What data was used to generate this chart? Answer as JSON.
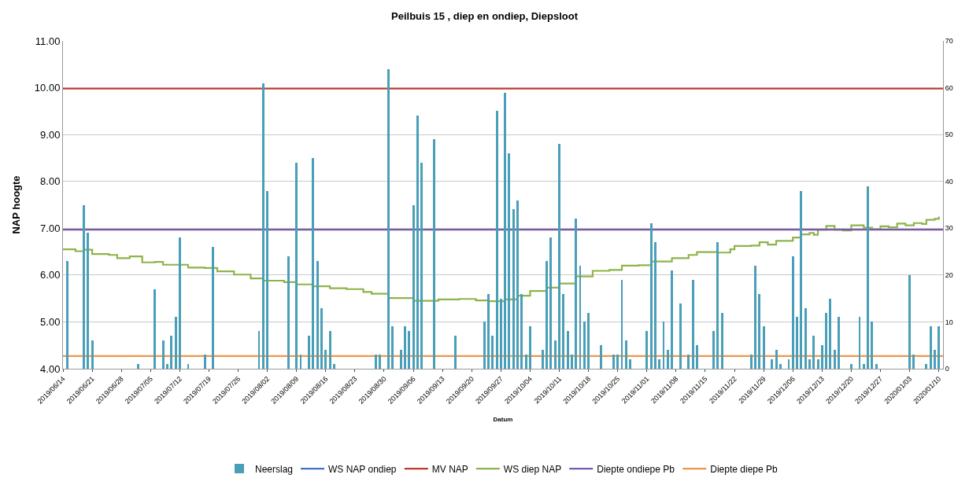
{
  "chart_data": {
    "type": "bar",
    "title": "Peilbuis 15 , diep en ondiep, Diepsloot",
    "xlabel": "Datum",
    "ylabel": "NAP hoogte",
    "xlim": [
      "2019-06-14",
      "2020-01-11"
    ],
    "xticks": [
      {
        "value": "2019-06-14",
        "label": "2019/06/14"
      },
      {
        "value": "2019-06-21",
        "label": "2019/06/21"
      },
      {
        "value": "2019-06-28",
        "label": "2019/06/28"
      },
      {
        "value": "2019-07-05",
        "label": "2019/07/05"
      },
      {
        "value": "2019-07-12",
        "label": "2019/07/12"
      },
      {
        "value": "2019-07-19",
        "label": "2019/07/19"
      },
      {
        "value": "2019-07-26",
        "label": "2019/07/26"
      },
      {
        "value": "2019-08-02",
        "label": "2019/08/02"
      },
      {
        "value": "2019-08-09",
        "label": "2019/08/09"
      },
      {
        "value": "2019-08-16",
        "label": "2019/08/16"
      },
      {
        "value": "2019-08-23",
        "label": "2019/08/23"
      },
      {
        "value": "2019-08-30",
        "label": "2019/08/30"
      },
      {
        "value": "2019-09-06",
        "label": "2019/09/06"
      },
      {
        "value": "2019-09-13",
        "label": "2019/09/13"
      },
      {
        "value": "2019-09-20",
        "label": "2019/09/20"
      },
      {
        "value": "2019-09-27",
        "label": "2019/09/27"
      },
      {
        "value": "2019-10-04",
        "label": "2019/10/04"
      },
      {
        "value": "2019-10-11",
        "label": "2019/10/11"
      },
      {
        "value": "2019-10-18",
        "label": "2019/10/18"
      },
      {
        "value": "2019-10-25",
        "label": "2019/10/25"
      },
      {
        "value": "2019-11-01",
        "label": "2019/11/01"
      },
      {
        "value": "2019-11-08",
        "label": "2019/11/08"
      },
      {
        "value": "2019-11-15",
        "label": "2019/11/15"
      },
      {
        "value": "2019-11-22",
        "label": "2019/11/22"
      },
      {
        "value": "2019-11-29",
        "label": "2019/11/29"
      },
      {
        "value": "2019-12-06",
        "label": "2019/12/06"
      },
      {
        "value": "2019-12-13",
        "label": "2019/12/13"
      },
      {
        "value": "2019-12-20",
        "label": "2019/12/20"
      },
      {
        "value": "2019-12-27",
        "label": "2019/12/27"
      },
      {
        "value": "2020-01-03",
        "label": "2020/01/03"
      },
      {
        "value": "2020-01-10",
        "label": "2020/01/10"
      }
    ],
    "ylim": [
      4,
      11
    ],
    "yticks": [
      {
        "value": 4,
        "label": "4.00"
      },
      {
        "value": 5,
        "label": "5.00"
      },
      {
        "value": 6,
        "label": "6.00"
      },
      {
        "value": 7,
        "label": "7.00"
      },
      {
        "value": 8,
        "label": "8.00"
      },
      {
        "value": 9,
        "label": "9.00"
      },
      {
        "value": 10,
        "label": "10.00"
      },
      {
        "value": 11,
        "label": "11.00"
      }
    ],
    "y2lim": [
      0,
      70
    ],
    "y2ticks": [
      0,
      10,
      20,
      30,
      40,
      50,
      60,
      70
    ],
    "grid": "y",
    "legend": "bottom",
    "series": [
      {
        "name": "Neerslag",
        "axis": "y2",
        "color": "#4a9fb8",
        "x": [
          "2019-06-15",
          "2019-06-19",
          "2019-06-20",
          "2019-06-21",
          "2019-07-02",
          "2019-07-06",
          "2019-07-08",
          "2019-07-09",
          "2019-07-10",
          "2019-07-11",
          "2019-07-12",
          "2019-07-14",
          "2019-07-18",
          "2019-07-20",
          "2019-07-31",
          "2019-08-01",
          "2019-08-02",
          "2019-08-07",
          "2019-08-09",
          "2019-08-10",
          "2019-08-12",
          "2019-08-13",
          "2019-08-14",
          "2019-08-15",
          "2019-08-16",
          "2019-08-17",
          "2019-08-18",
          "2019-08-28",
          "2019-08-29",
          "2019-08-31",
          "2019-09-01",
          "2019-09-03",
          "2019-09-04",
          "2019-09-05",
          "2019-09-06",
          "2019-09-07",
          "2019-09-08",
          "2019-09-11",
          "2019-09-16",
          "2019-09-23",
          "2019-09-24",
          "2019-09-25",
          "2019-09-26",
          "2019-09-27",
          "2019-09-28",
          "2019-09-29",
          "2019-09-30",
          "2019-10-01",
          "2019-10-02",
          "2019-10-03",
          "2019-10-04",
          "2019-10-07",
          "2019-10-08",
          "2019-10-09",
          "2019-10-10",
          "2019-10-11",
          "2019-10-12",
          "2019-10-13",
          "2019-10-14",
          "2019-10-15",
          "2019-10-16",
          "2019-10-17",
          "2019-10-18",
          "2019-10-21",
          "2019-10-24",
          "2019-10-25",
          "2019-10-26",
          "2019-10-27",
          "2019-10-28",
          "2019-11-01",
          "2019-11-02",
          "2019-11-03",
          "2019-11-04",
          "2019-11-05",
          "2019-11-06",
          "2019-11-07",
          "2019-11-09",
          "2019-11-11",
          "2019-11-12",
          "2019-11-13",
          "2019-11-17",
          "2019-11-18",
          "2019-11-19",
          "2019-11-26",
          "2019-11-27",
          "2019-11-28",
          "2019-11-29",
          "2019-12-01",
          "2019-12-02",
          "2019-12-03",
          "2019-12-05",
          "2019-12-06",
          "2019-12-07",
          "2019-12-08",
          "2019-12-09",
          "2019-12-10",
          "2019-12-11",
          "2019-12-12",
          "2019-12-13",
          "2019-12-14",
          "2019-12-15",
          "2019-12-16",
          "2019-12-17",
          "2019-12-20",
          "2019-12-22",
          "2019-12-23",
          "2019-12-24",
          "2019-12-25",
          "2019-12-26",
          "2020-01-03",
          "2020-01-04",
          "2020-01-07",
          "2020-01-08",
          "2020-01-09",
          "2020-01-10"
        ],
        "values": [
          23,
          35,
          29,
          6,
          1,
          17,
          6,
          1,
          7,
          11,
          28,
          1,
          3,
          26,
          8,
          61,
          38,
          24,
          44,
          3,
          7,
          45,
          23,
          13,
          4,
          8,
          1,
          3,
          3,
          64,
          9,
          4,
          9,
          8,
          35,
          54,
          44,
          49,
          7,
          10,
          16,
          7,
          55,
          15,
          59,
          46,
          34,
          36,
          16,
          3,
          9,
          4,
          23,
          28,
          6,
          48,
          16,
          8,
          3,
          32,
          22,
          10,
          12,
          5,
          3,
          3,
          19,
          6,
          2,
          8,
          31,
          27,
          2,
          10,
          4,
          21,
          14,
          3,
          19,
          5,
          8,
          27,
          12,
          3,
          22,
          16,
          9,
          2,
          4,
          1,
          2,
          24,
          11,
          38,
          13,
          2,
          7,
          2,
          5,
          12,
          15,
          4,
          11,
          1,
          11,
          1,
          39,
          10,
          1,
          20,
          3,
          1,
          9,
          4,
          9
        ]
      },
      {
        "name": "WS NAP ondiep",
        "type": "line",
        "color": "#4472c4"
      },
      {
        "name": "MV NAP",
        "type": "line",
        "color": "#c0392b",
        "x": [
          "2019-06-14",
          "2020-01-11"
        ],
        "values": [
          9.98,
          9.98
        ]
      },
      {
        "name": "WS diep NAP",
        "type": "step",
        "color": "#8db44a",
        "x": [
          "2019-06-14",
          "2019-06-17",
          "2019-06-19",
          "2019-06-21",
          "2019-06-25",
          "2019-06-27",
          "2019-06-30",
          "2019-07-03",
          "2019-07-06",
          "2019-07-08",
          "2019-07-11",
          "2019-07-14",
          "2019-07-18",
          "2019-07-21",
          "2019-07-25",
          "2019-07-29",
          "2019-08-01",
          "2019-08-06",
          "2019-08-09",
          "2019-08-13",
          "2019-08-17",
          "2019-08-21",
          "2019-08-25",
          "2019-08-27",
          "2019-08-31",
          "2019-09-06",
          "2019-09-12",
          "2019-09-17",
          "2019-09-21",
          "2019-09-24",
          "2019-09-28",
          "2019-10-01",
          "2019-10-04",
          "2019-10-08",
          "2019-10-11",
          "2019-10-15",
          "2019-10-19",
          "2019-10-23",
          "2019-10-26",
          "2019-10-30",
          "2019-11-02",
          "2019-11-07",
          "2019-11-11",
          "2019-11-13",
          "2019-11-18",
          "2019-11-21",
          "2019-11-22",
          "2019-11-26",
          "2019-11-28",
          "2019-11-30",
          "2019-12-02",
          "2019-12-06",
          "2019-12-08",
          "2019-12-10",
          "2019-12-11",
          "2019-12-12",
          "2019-12-14",
          "2019-12-16",
          "2019-12-18",
          "2019-12-20",
          "2019-12-23",
          "2019-12-25",
          "2019-12-27",
          "2019-12-29",
          "2019-12-31",
          "2020-01-02",
          "2020-01-04",
          "2020-01-06",
          "2020-01-07",
          "2020-01-09",
          "2020-01-10"
        ],
        "values": [
          6.55,
          6.51,
          6.54,
          6.45,
          6.43,
          6.36,
          6.4,
          6.27,
          6.28,
          6.22,
          6.22,
          6.16,
          6.15,
          6.08,
          6.01,
          5.93,
          5.88,
          5.85,
          5.8,
          5.76,
          5.72,
          5.7,
          5.64,
          5.6,
          5.51,
          5.45,
          5.48,
          5.49,
          5.46,
          5.44,
          5.48,
          5.56,
          5.66,
          5.73,
          5.82,
          5.97,
          6.09,
          6.11,
          6.2,
          6.21,
          6.29,
          6.36,
          6.43,
          6.49,
          6.48,
          6.55,
          6.62,
          6.63,
          6.7,
          6.65,
          6.73,
          6.8,
          6.87,
          6.9,
          6.86,
          6.97,
          7.05,
          6.97,
          6.95,
          7.06,
          7.01,
          6.98,
          7.04,
          7.02,
          7.1,
          7.06,
          7.11,
          7.09,
          7.18,
          7.2,
          7.25
        ]
      },
      {
        "name": "Diepte ondiepe Pb",
        "type": "line",
        "color": "#7a5aa6",
        "x": [
          "2019-06-14",
          "2020-01-11"
        ],
        "values": [
          6.97,
          6.97
        ]
      },
      {
        "name": "Diepte diepe Pb",
        "type": "line",
        "color": "#f0964a",
        "x": [
          "2019-06-14",
          "2020-01-11"
        ],
        "values": [
          4.27,
          4.27
        ]
      }
    ]
  }
}
